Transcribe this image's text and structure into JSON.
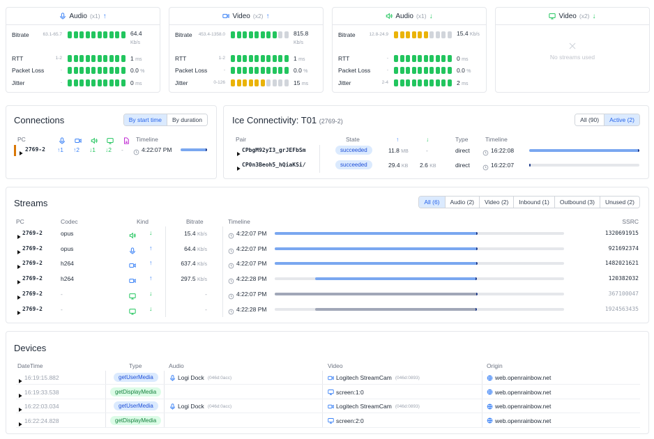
{
  "stat_cards": [
    {
      "title": "Audio",
      "count": "(x1)",
      "arrow": "↑",
      "icon": "mic",
      "rows": [
        {
          "label": "Bitrate",
          "range": "63.1-65.7",
          "value": "64.4",
          "unit": "Kb/s",
          "level": 10,
          "color": "#22c55e"
        },
        {
          "label": "RTT",
          "range": "1-2",
          "value": "1",
          "unit": "ms",
          "level": 10,
          "color": "#22c55e"
        },
        {
          "label": "Packet Loss",
          "range": "-",
          "value": "0.0",
          "unit": "%",
          "level": 10,
          "color": "#22c55e"
        },
        {
          "label": "Jitter",
          "range": "-",
          "value": "0",
          "unit": "ms",
          "level": 10,
          "color": "#22c55e"
        }
      ]
    },
    {
      "title": "Video",
      "count": "(x2)",
      "arrow": "↑",
      "icon": "cam",
      "rows": [
        {
          "label": "Bitrate",
          "range": "453.4-1358.0",
          "value": "815.8",
          "unit": "Kb/s",
          "level": 8,
          "color": "#22c55e"
        },
        {
          "label": "RTT",
          "range": "1-2",
          "value": "1",
          "unit": "ms",
          "level": 10,
          "color": "#22c55e"
        },
        {
          "label": "Packet Loss",
          "range": "-",
          "value": "0.0",
          "unit": "%",
          "level": 10,
          "color": "#22c55e"
        },
        {
          "label": "Jitter",
          "range": "0-126",
          "value": "15",
          "unit": "ms",
          "level": 6,
          "color": "#eab308"
        }
      ]
    },
    {
      "title": "Audio",
      "count": "(x1)",
      "arrow": "↓",
      "icon": "speaker",
      "rows": [
        {
          "label": "Bitrate",
          "range": "12.8-24.9",
          "value": "15.4",
          "unit": "Kb/s",
          "level": 6,
          "color": "#eab308"
        },
        {
          "label": "RTT",
          "range": "-",
          "value": "0",
          "unit": "ms",
          "level": 10,
          "color": "#22c55e"
        },
        {
          "label": "Packet Loss",
          "range": "-",
          "value": "0.0",
          "unit": "%",
          "level": 10,
          "color": "#22c55e"
        },
        {
          "label": "Jitter",
          "range": "2-4",
          "value": "2",
          "unit": "ms",
          "level": 10,
          "color": "#22c55e"
        }
      ]
    },
    {
      "title": "Video",
      "count": "(x2)",
      "arrow": "↓",
      "icon": "monitor",
      "empty": "No streams used"
    }
  ],
  "connections": {
    "title": "Connections",
    "buttons": [
      "By start time",
      "By duration"
    ],
    "active": 0,
    "columns": {
      "pc": "PC",
      "timeline": "Timeline"
    },
    "rows": [
      {
        "pc": "2769-2",
        "counts": [
          "↑1",
          "↑2",
          "↓1",
          "↓2",
          "-"
        ],
        "time": "4:22:07 PM",
        "span": [
          0,
          1
        ]
      }
    ]
  },
  "ice": {
    "title": "Ice Connectivity: T01",
    "subtitle": "(2769-2)",
    "buttons": [
      "All (90)",
      "Active (2)"
    ],
    "active": 1,
    "columns": [
      "Pair",
      "State",
      "↑",
      "↓",
      "Type",
      "Timeline"
    ],
    "rows": [
      {
        "pair": "CPbgM92yI3_grJEFbSm",
        "state": "succeeded",
        "up": "11.8",
        "up_unit": "MB",
        "down": "-",
        "type": "direct",
        "time": "16:22:08",
        "span": [
          0,
          1
        ]
      },
      {
        "pair": "CP0n3Beoh5_hQiaKSi/",
        "state": "succeeded",
        "up": "29.4",
        "up_unit": "KB",
        "down": "2.6",
        "down_unit": "KB",
        "type": "direct",
        "time": "16:22:07",
        "span": [
          0,
          0.01
        ]
      }
    ]
  },
  "streams": {
    "title": "Streams",
    "buttons": [
      "All (6)",
      "Audio (2)",
      "Video (2)",
      "Inbound (1)",
      "Outbound (3)",
      "Unused (2)"
    ],
    "active": 0,
    "columns": [
      "PC",
      "Codec",
      "Kind",
      "Bitrate",
      "Timeline",
      "SSRC"
    ],
    "rows": [
      {
        "pc": "2769-2",
        "codec": "opus",
        "kind": "speaker",
        "arrow": "↓",
        "bitrate": "15.4",
        "unit": "Kb/s",
        "time": "4:22:07 PM",
        "ssrc": "1320691915",
        "span": [
          0,
          0.7
        ],
        "active": true
      },
      {
        "pc": "2769-2",
        "codec": "opus",
        "kind": "mic",
        "arrow": "↑",
        "bitrate": "64.4",
        "unit": "Kb/s",
        "time": "4:22:07 PM",
        "ssrc": "921692374",
        "span": [
          0,
          0.7
        ],
        "active": true
      },
      {
        "pc": "2769-2",
        "codec": "h264",
        "kind": "cam",
        "arrow": "↑",
        "bitrate": "637.4",
        "unit": "Kb/s",
        "time": "4:22:07 PM",
        "ssrc": "1482021621",
        "span": [
          0,
          0.7
        ],
        "active": true
      },
      {
        "pc": "2769-2",
        "codec": "h264",
        "kind": "cam",
        "arrow": "↑",
        "bitrate": "297.5",
        "unit": "Kb/s",
        "time": "4:22:28 PM",
        "ssrc": "120382032",
        "span": [
          0.14,
          0.7
        ],
        "active": true
      },
      {
        "pc": "2769-2",
        "codec": "-",
        "kind": "monitor",
        "arrow": "↓",
        "bitrate": "-",
        "time": "4:22:07 PM",
        "ssrc": "367100047",
        "span": [
          0,
          0.7
        ],
        "active": false
      },
      {
        "pc": "2769-2",
        "codec": "-",
        "kind": "monitor",
        "arrow": "↓",
        "bitrate": "-",
        "time": "4:22:28 PM",
        "ssrc": "1924563435",
        "span": [
          0.14,
          0.7
        ],
        "active": false
      }
    ]
  },
  "devices": {
    "title": "Devices",
    "columns": [
      "DateTime",
      "Type",
      "Audio",
      "Video",
      "Origin"
    ],
    "rows": [
      {
        "time": "16:19:15.882",
        "type": "getUserMedia",
        "audio": "Logi Dock",
        "audio_id": "(046d:0acc)",
        "video": "Logitech StreamCam",
        "video_id": "(046d:0893)",
        "origin": "web.openrainbow.net"
      },
      {
        "time": "16:19:33.538",
        "type": "getDisplayMedia",
        "video": "screen:1:0",
        "origin": "web.openrainbow.net"
      },
      {
        "time": "16:22:03.034",
        "type": "getUserMedia",
        "audio": "Logi Dock",
        "audio_id": "(046d:0acc)",
        "video": "Logitech StreamCam",
        "video_id": "(046d:0893)",
        "origin": "web.openrainbow.net"
      },
      {
        "time": "16:22:24.828",
        "type": "getDisplayMedia",
        "video": "screen:2:0",
        "origin": "web.openrainbow.net"
      }
    ]
  }
}
